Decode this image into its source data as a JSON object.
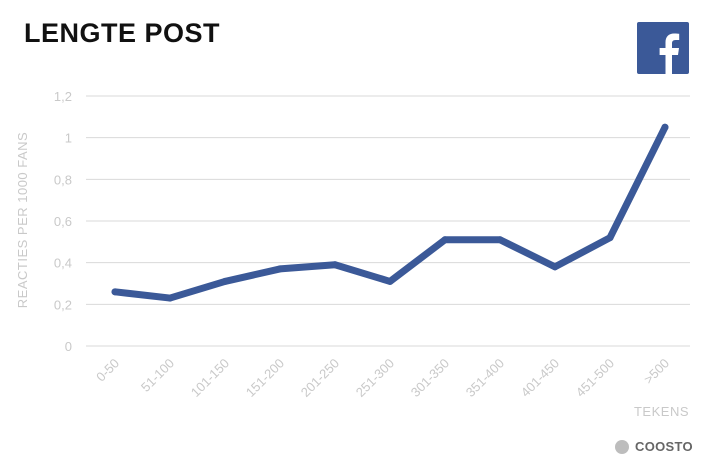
{
  "header": {
    "title": "LENGTE POST"
  },
  "logo": {
    "icon": "facebook-icon",
    "color": "#3b5998"
  },
  "brand": {
    "name": "COOSTO",
    "icon": "coosto-dot-icon"
  },
  "chart_data": {
    "type": "line",
    "title": "LENGTE POST",
    "xlabel": "TEKENS",
    "ylabel": "REACTIES PER 1000 FANS",
    "categories": [
      "0-50",
      "51-100",
      "101-150",
      "151-200",
      "201-250",
      "251-300",
      "301-350",
      "351-400",
      "401-450",
      "451-500",
      ">500"
    ],
    "series": [
      {
        "values": [
          0.26,
          0.23,
          0.31,
          0.37,
          0.39,
          0.31,
          0.51,
          0.51,
          0.38,
          0.52,
          1.05
        ],
        "color": "#3b5998"
      }
    ],
    "ylim": [
      0,
      1.2
    ],
    "yticks": [
      "0",
      "0,2",
      "0,4",
      "0,6",
      "0,8",
      "1",
      "1,2"
    ],
    "grid": true,
    "legend": "none"
  }
}
